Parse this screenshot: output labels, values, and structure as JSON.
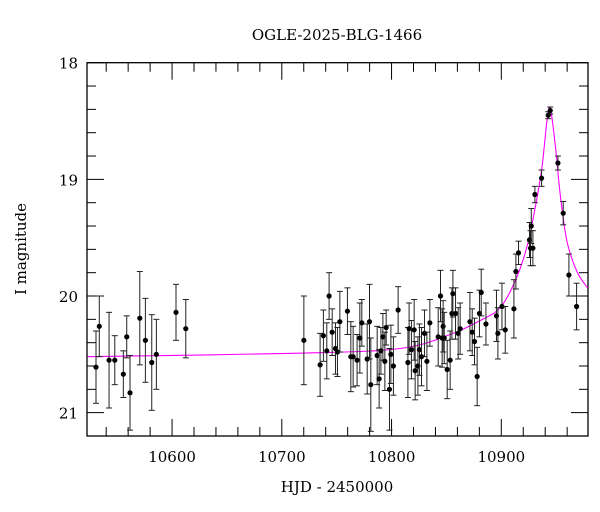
{
  "chart_data": {
    "type": "scatter",
    "title": "OGLE-2025-BLG-1466",
    "xlabel": "HJD - 2450000",
    "ylabel": "I magnitude",
    "xlim": [
      10522.5,
      10979
    ],
    "ylim": [
      18,
      21.2
    ],
    "y_inverted": true,
    "grid": false,
    "x_ticks": [
      10600,
      10700,
      10800,
      10900
    ],
    "x_tick_labels": [
      "10600",
      "10700",
      "10800",
      "10900"
    ],
    "y_ticks": [
      18,
      19,
      20,
      21
    ],
    "y_tick_labels": [
      "18",
      "19",
      "20",
      "21"
    ],
    "colors": {
      "points": "#000000",
      "model": "#ff00ff"
    },
    "series": [
      {
        "kind": "points_with_errorbars",
        "columns": [
          "hjd",
          "mag",
          "err"
        ],
        "points": [
          [
            10530.7,
            20.61,
            0.31
          ],
          [
            10533.7,
            20.26,
            0.26
          ],
          [
            10542.6,
            20.55,
            0.41
          ],
          [
            10547.8,
            20.55,
            0.21
          ],
          [
            10555.6,
            20.67,
            0.2
          ],
          [
            10558.7,
            20.35,
            0.18
          ],
          [
            10561.7,
            20.83,
            0.32
          ],
          [
            10570.6,
            20.19,
            0.4
          ],
          [
            10575.7,
            20.38,
            0.36
          ],
          [
            10581.5,
            20.57,
            0.41
          ],
          [
            10585.7,
            20.5,
            0.3
          ],
          [
            10603.6,
            20.14,
            0.24
          ],
          [
            10612.5,
            20.28,
            0.25
          ],
          [
            10720.1,
            20.38,
            0.38
          ],
          [
            10734.9,
            20.59,
            0.27
          ],
          [
            10737.9,
            20.34,
            0.22
          ],
          [
            10741.0,
            20.47,
            0.24
          ],
          [
            10743.1,
            20.0,
            0.2
          ],
          [
            10745.9,
            20.31,
            0.2
          ],
          [
            10748.9,
            20.45,
            0.22
          ],
          [
            10750.7,
            20.48,
            0.21
          ],
          [
            10752.9,
            20.22,
            0.26
          ],
          [
            10759.8,
            20.13,
            0.2
          ],
          [
            10762.9,
            20.52,
            0.3
          ],
          [
            10765.0,
            20.52,
            0.26
          ],
          [
            10768.6,
            20.55,
            0.22
          ],
          [
            10771.1,
            20.36,
            0.3
          ],
          [
            10772.9,
            20.23,
            0.2
          ],
          [
            10777.8,
            20.54,
            0.3
          ],
          [
            10779.9,
            20.22,
            0.32
          ],
          [
            10781.1,
            20.76,
            0.4
          ],
          [
            10786.9,
            20.51,
            0.25
          ],
          [
            10788.7,
            20.71,
            0.25
          ],
          [
            10790.3,
            20.47,
            0.2
          ],
          [
            10792.1,
            20.35,
            0.2
          ],
          [
            10793.9,
            20.56,
            0.25
          ],
          [
            10795.1,
            20.27,
            0.15
          ],
          [
            10798.1,
            20.8,
            0.35
          ],
          [
            10799.4,
            20.5,
            0.25
          ],
          [
            10801.7,
            20.6,
            0.25
          ],
          [
            10806.0,
            20.12,
            0.2
          ],
          [
            10814.9,
            20.57,
            0.3
          ],
          [
            10816.0,
            20.28,
            0.22
          ],
          [
            10818.1,
            20.46,
            0.25
          ],
          [
            10820.6,
            20.29,
            0.26
          ],
          [
            10821.5,
            20.64,
            0.25
          ],
          [
            10824.0,
            20.6,
            0.25
          ],
          [
            10825.4,
            20.46,
            0.22
          ],
          [
            10827.3,
            20.52,
            0.25
          ],
          [
            10830.0,
            20.32,
            0.2
          ],
          [
            10832.2,
            20.56,
            0.25
          ],
          [
            10834.9,
            20.23,
            0.2
          ],
          [
            10842.5,
            20.35,
            0.25
          ],
          [
            10844.6,
            20.0,
            0.22
          ],
          [
            10846.1,
            20.36,
            0.25
          ],
          [
            10847.0,
            20.26,
            0.22
          ],
          [
            10848.0,
            20.36,
            0.22
          ],
          [
            10850.7,
            20.63,
            0.25
          ],
          [
            10853.4,
            20.55,
            0.25
          ],
          [
            10855.0,
            20.15,
            0.22
          ],
          [
            10855.9,
            19.98,
            0.2
          ],
          [
            10858.3,
            20.15,
            0.22
          ],
          [
            10860.7,
            20.32,
            0.22
          ],
          [
            10862.5,
            20.28,
            0.22
          ],
          [
            10871.4,
            20.22,
            0.25
          ],
          [
            10873.5,
            20.31,
            0.2
          ],
          [
            10875.6,
            20.39,
            0.2
          ],
          [
            10878.0,
            20.69,
            0.25
          ],
          [
            10880.1,
            20.15,
            0.2
          ],
          [
            10881.7,
            19.97,
            0.2
          ],
          [
            10886.0,
            20.24,
            0.18
          ],
          [
            10895.6,
            20.17,
            0.22
          ],
          [
            10896.9,
            20.32,
            0.22
          ],
          [
            10900.6,
            20.09,
            0.2
          ],
          [
            10903.6,
            20.29,
            0.2
          ],
          [
            10911.5,
            20.11,
            0.25
          ],
          [
            10913.3,
            19.79,
            0.15
          ],
          [
            10915.7,
            19.63,
            0.1
          ],
          [
            10925.7,
            19.52,
            0.15
          ],
          [
            10926.6,
            19.59,
            0.15
          ],
          [
            10927.3,
            19.4,
            0.15
          ],
          [
            10928.8,
            19.59,
            0.15
          ],
          [
            10930.6,
            19.13,
            0.07
          ],
          [
            10936.7,
            18.99,
            0.07
          ],
          [
            10942.8,
            18.45,
            0.03
          ],
          [
            10944.6,
            18.41,
            0.03
          ],
          [
            10951.6,
            18.86,
            0.06
          ],
          [
            10956.4,
            19.29,
            0.1
          ],
          [
            10961.6,
            19.82,
            0.18
          ],
          [
            10968.6,
            20.09,
            0.2
          ]
        ]
      },
      {
        "kind": "model_curve",
        "points": [
          [
            10523,
            20.52
          ],
          [
            10716.7,
            20.49
          ],
          [
            10807.8,
            20.45
          ],
          [
            10853.4,
            20.33
          ],
          [
            10880.8,
            20.21
          ],
          [
            10899.0,
            20.1
          ],
          [
            10912.7,
            19.87
          ],
          [
            10923.3,
            19.58
          ],
          [
            10930.9,
            19.24
          ],
          [
            10937.0,
            18.9
          ],
          [
            10941.6,
            18.5
          ],
          [
            10944.6,
            18.39
          ],
          [
            10949.1,
            18.7
          ],
          [
            10953.7,
            19.13
          ],
          [
            10959.8,
            19.53
          ],
          [
            10968.9,
            19.79
          ],
          [
            10978.6,
            19.93
          ]
        ]
      }
    ]
  }
}
